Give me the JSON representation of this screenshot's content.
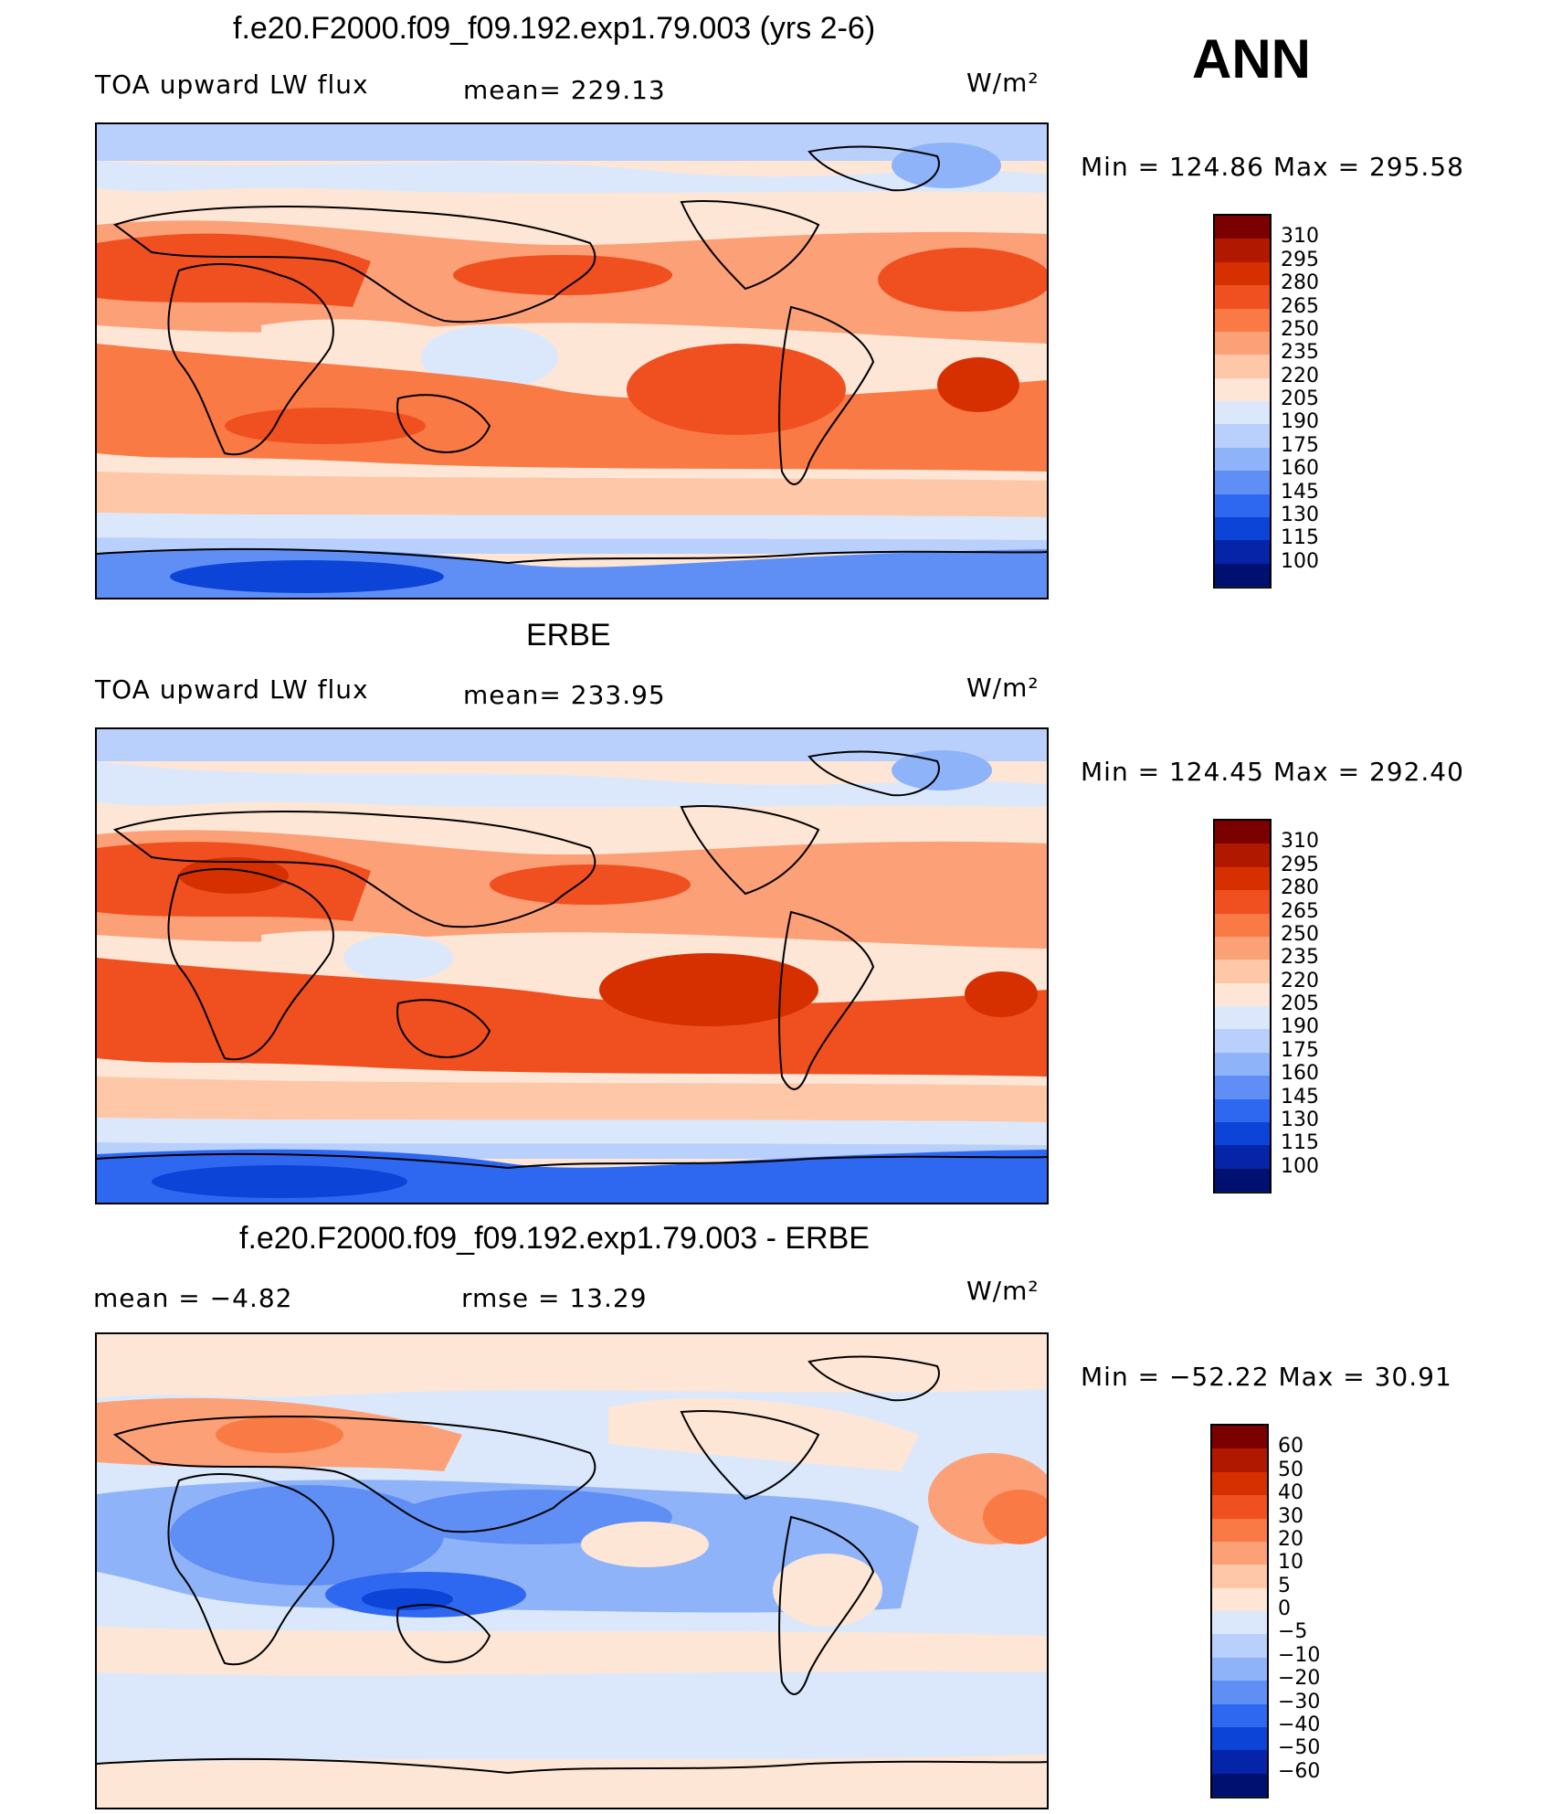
{
  "season": "ANN",
  "panels": [
    {
      "id": "model",
      "title": "f.e20.F2000.f09_f09.192.exp1.79.003 (yrs 2-6)",
      "variable": "TOA upward LW flux",
      "stat1": "mean=  229.13",
      "stat2": "",
      "units": "W/m²",
      "minmax": "Min  =  124.86  Max  =  295.58"
    },
    {
      "id": "obs",
      "title": "ERBE",
      "variable": "TOA upward LW flux",
      "stat1": "mean=  233.95",
      "stat2": "",
      "units": "W/m²",
      "minmax": "Min  =  124.45  Max  =  292.40"
    },
    {
      "id": "diff",
      "title": "f.e20.F2000.f09_f09.192.exp1.79.003 - ERBE",
      "variable": "mean  =    −4.82",
      "stat1": "rmse  =    13.29",
      "stat2": "",
      "units": "W/m²",
      "minmax": "Min  =  −52.22  Max  =    30.91"
    }
  ],
  "colorbars": {
    "flux": {
      "labels": [
        "310",
        "295",
        "280",
        "265",
        "250",
        "235",
        "220",
        "205",
        "190",
        "175",
        "160",
        "145",
        "130",
        "115",
        "100"
      ],
      "colors": [
        "#7b0000",
        "#b01800",
        "#d73000",
        "#f05020",
        "#fa7a45",
        "#fca078",
        "#fdc7a8",
        "#fde6d6",
        "#dbe8fb",
        "#b8d0fb",
        "#8fb3f9",
        "#5f8ff5",
        "#2f68f0",
        "#0d44d8",
        "#0624a8",
        "#001070"
      ]
    },
    "diff": {
      "labels": [
        "60",
        "50",
        "40",
        "30",
        "20",
        "10",
        "5",
        "0",
        "−5",
        "−10",
        "−20",
        "−30",
        "−40",
        "−50",
        "−60"
      ],
      "colors": [
        "#7b0000",
        "#b01800",
        "#d73000",
        "#f05020",
        "#fa7a45",
        "#fca078",
        "#fdc7a8",
        "#fde6d6",
        "#dbe8fb",
        "#b8d0fb",
        "#8fb3f9",
        "#5f8ff5",
        "#2f68f0",
        "#0d44d8",
        "#0624a8",
        "#001070"
      ]
    }
  }
}
